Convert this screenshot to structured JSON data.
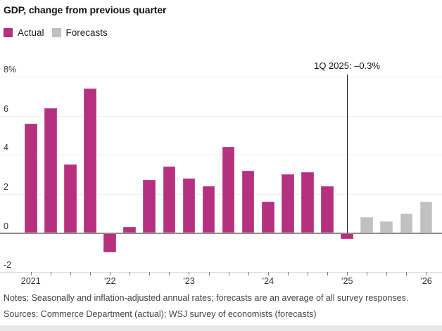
{
  "title": "GDP, change from previous quarter",
  "legend": [
    {
      "label": "Actual",
      "color": "#b63080"
    },
    {
      "label": "Forecasts",
      "color": "#c1c1c1"
    }
  ],
  "colors": {
    "actual": "#b63080",
    "forecast": "#c1c1c1",
    "zero_line": "#8d8d8d",
    "gridline": "#efefef",
    "annotation_line": "#1f1f1f"
  },
  "annotation": {
    "label": "1Q 2025: –0.3%",
    "quarter": "1Q 2025",
    "value": -0.3
  },
  "notes": "Notes: Seasonally and inflation-adjusted annual rates; forecasts are an average of all survey responses.",
  "sources": "Sources: Commerce Department (actual); WSJ survey of economists (forecasts)",
  "chart_data": {
    "type": "bar",
    "title": "GDP, change from previous quarter",
    "xlabel": "",
    "ylabel": "%",
    "ylim": [
      -2,
      8
    ],
    "grid": true,
    "legend_position": "top-left",
    "yticks": [
      8,
      6,
      4,
      2,
      0,
      -2
    ],
    "ytick_labels": [
      "8%",
      "6",
      "4",
      "2",
      "0",
      "-2"
    ],
    "x_year_ticks": [
      {
        "index": 0,
        "label": "2021"
      },
      {
        "index": 4,
        "label": "’22"
      },
      {
        "index": 8,
        "label": "’23"
      },
      {
        "index": 12,
        "label": "’24"
      },
      {
        "index": 16,
        "label": "’25"
      },
      {
        "index": 20,
        "label": "’26"
      }
    ],
    "bars": [
      {
        "quarter": "1Q 2021",
        "value": 5.6,
        "type": "actual"
      },
      {
        "quarter": "2Q 2021",
        "value": 6.4,
        "type": "actual"
      },
      {
        "quarter": "3Q 2021",
        "value": 3.5,
        "type": "actual"
      },
      {
        "quarter": "4Q 2021",
        "value": 7.4,
        "type": "actual"
      },
      {
        "quarter": "1Q 2022",
        "value": -1.0,
        "type": "actual"
      },
      {
        "quarter": "2Q 2022",
        "value": 0.3,
        "type": "actual"
      },
      {
        "quarter": "3Q 2022",
        "value": 2.7,
        "type": "actual"
      },
      {
        "quarter": "4Q 2022",
        "value": 3.4,
        "type": "actual"
      },
      {
        "quarter": "1Q 2023",
        "value": 2.8,
        "type": "actual"
      },
      {
        "quarter": "2Q 2023",
        "value": 2.4,
        "type": "actual"
      },
      {
        "quarter": "3Q 2023",
        "value": 4.4,
        "type": "actual"
      },
      {
        "quarter": "4Q 2023",
        "value": 3.2,
        "type": "actual"
      },
      {
        "quarter": "1Q 2024",
        "value": 1.6,
        "type": "actual"
      },
      {
        "quarter": "2Q 2024",
        "value": 3.0,
        "type": "actual"
      },
      {
        "quarter": "3Q 2024",
        "value": 3.1,
        "type": "actual"
      },
      {
        "quarter": "4Q 2024",
        "value": 2.4,
        "type": "actual"
      },
      {
        "quarter": "1Q 2025",
        "value": -0.3,
        "type": "actual"
      },
      {
        "quarter": "2Q 2025",
        "value": 0.8,
        "type": "forecast"
      },
      {
        "quarter": "3Q 2025",
        "value": 0.6,
        "type": "forecast"
      },
      {
        "quarter": "4Q 2025",
        "value": 1.0,
        "type": "forecast"
      },
      {
        "quarter": "1Q 2026",
        "value": 1.6,
        "type": "forecast"
      }
    ]
  }
}
